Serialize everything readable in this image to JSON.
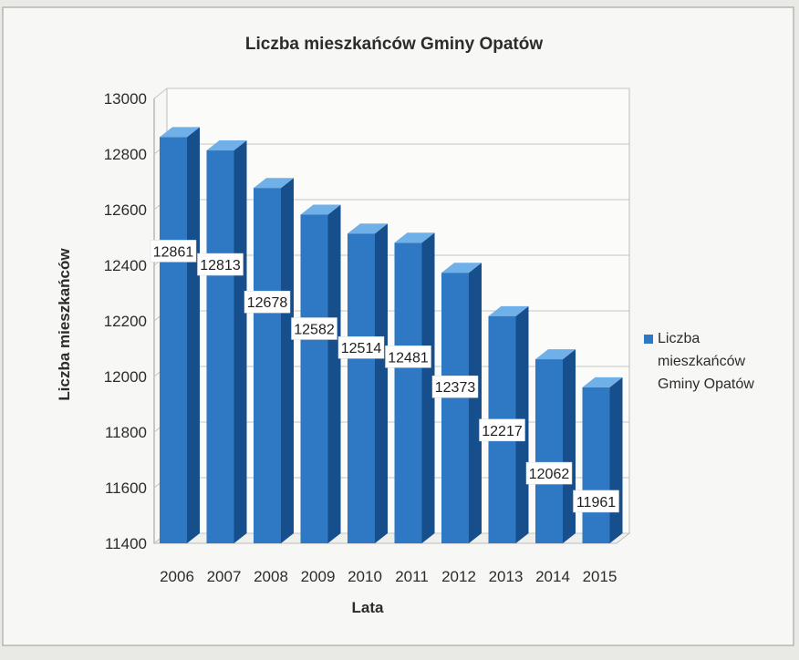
{
  "chart_data": {
    "type": "bar",
    "title": "Liczba mieszkańców Gminy Opatów",
    "xlabel": "Lata",
    "ylabel": "Liczba mieszkańców",
    "categories": [
      "2006",
      "2007",
      "2008",
      "2009",
      "2010",
      "2011",
      "2012",
      "2013",
      "2014",
      "2015"
    ],
    "series": [
      {
        "name": "Liczba mieszkańców Gminy Opatów",
        "values": [
          12861,
          12813,
          12678,
          12582,
          12514,
          12481,
          12373,
          12217,
          12062,
          11961
        ]
      }
    ],
    "ylim": [
      11400,
      13000
    ],
    "yticks": [
      11400,
      11600,
      11800,
      12000,
      12200,
      12400,
      12600,
      12800,
      13000
    ],
    "legend_position": "right",
    "legend_lines": [
      "Liczba",
      "mieszkańców",
      "Gminy Opatów"
    ],
    "grid": true,
    "data_labels": true,
    "bar_color": "#2e78c4",
    "bar_color_side": "#174f8c",
    "bar_color_top": "#6fb0e8"
  }
}
